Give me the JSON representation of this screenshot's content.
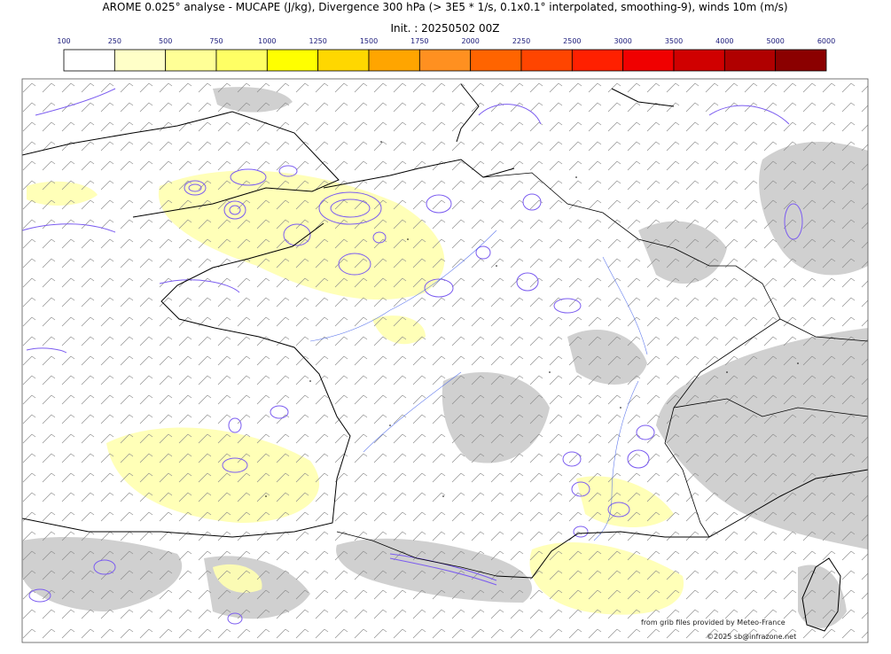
{
  "header": {
    "title": "AROME 0.025° analyse - MUCAPE (J/kg), Divergence 300 hPa (> 3E5 * 1/s, 0.1x0.1° interpolated, smoothing-9), winds 10m (m/s)",
    "init": "Init. : 20250502 00Z"
  },
  "colorbar": {
    "ticks": [
      100,
      250,
      500,
      750,
      1000,
      1250,
      1500,
      1750,
      2000,
      2250,
      2500,
      3000,
      3500,
      4000,
      5000,
      6000
    ],
    "colors": [
      "#ffffff",
      "#ffffc8",
      "#ffff96",
      "#ffff64",
      "#ffff00",
      "#ffd700",
      "#ffa500",
      "#ff9020",
      "#ff6400",
      "#ff4500",
      "#ff2000",
      "#f00000",
      "#d00000",
      "#b00000",
      "#8b0000"
    ]
  },
  "credits": [
    "from grib files provided by Meteo-France",
    "©2025 sb@infrazone.net"
  ]
}
